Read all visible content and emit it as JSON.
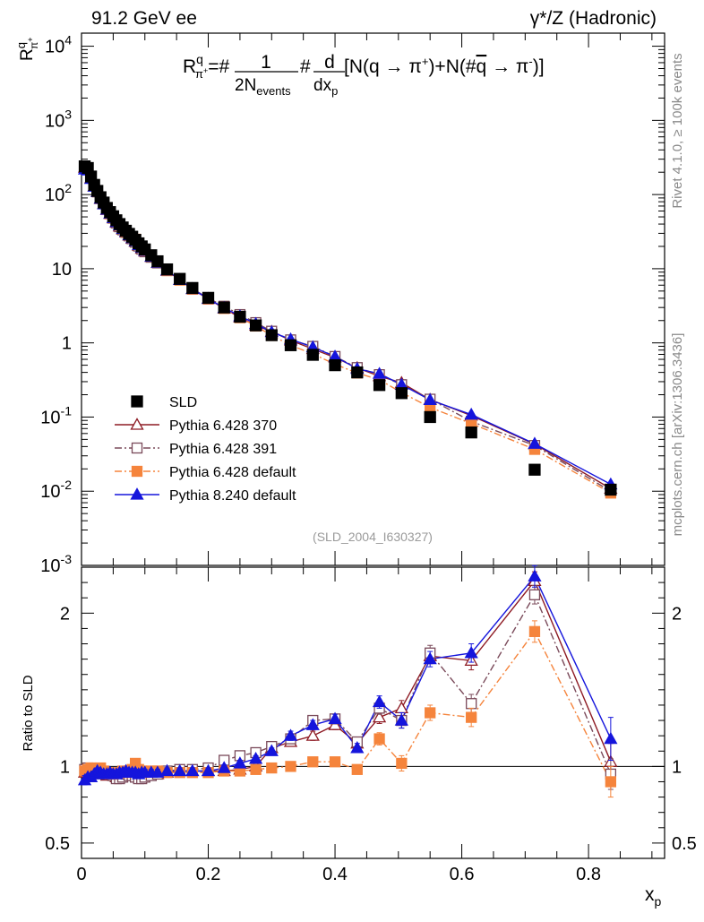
{
  "header": {
    "energy_label": "91.2 GeV ee",
    "process_label": "γ*/Z (Hadronic)",
    "rivet_label": "Rivet 4.1.0, ≥ 100k events",
    "site_label": "mcplots.cern.ch [arXiv:1306.3436]"
  },
  "chart_data": {
    "type": "scatter",
    "title": "R^q_{π+} = 1/(2N_events) d/dx_p [N(q→π+) + N(q̄→π−)]",
    "ylabel": "R^q_{π+}",
    "xlabel": "x_p",
    "ratio_ylabel": "Ratio to SLD",
    "analysis_tag": "(SLD_2004_I630327)",
    "xlim": [
      0,
      0.92
    ],
    "ylim_log": [
      0.001,
      15000
    ],
    "ratio_ylim": [
      0.4,
      2.3
    ],
    "x_ticks": [
      "0",
      "0.2",
      "0.4",
      "0.6",
      "0.8"
    ],
    "y_ticks": [
      "10^4",
      "10^3",
      "10^2",
      "10",
      "1",
      "10^-1",
      "10^-2",
      "10^-3"
    ],
    "ratio_ticks": [
      "2",
      "1",
      "0.5"
    ],
    "x": [
      0.005,
      0.01,
      0.015,
      0.02,
      0.025,
      0.03,
      0.035,
      0.04,
      0.045,
      0.05,
      0.055,
      0.06,
      0.065,
      0.07,
      0.075,
      0.08,
      0.085,
      0.09,
      0.095,
      0.1,
      0.11,
      0.12,
      0.135,
      0.155,
      0.175,
      0.2,
      0.225,
      0.25,
      0.275,
      0.3,
      0.33,
      0.365,
      0.4,
      0.435,
      0.47,
      0.505,
      0.55,
      0.615,
      0.715,
      0.835
    ],
    "reference": {
      "name": "SLD",
      "values": [
        240,
        228,
        175,
        135,
        112,
        92,
        78,
        66,
        58,
        51,
        45,
        40,
        36,
        32.5,
        29.5,
        27,
        24.5,
        22,
        20,
        18.2,
        15.2,
        12.6,
        9.8,
        7.3,
        5.5,
        4.05,
        3.0,
        2.25,
        1.72,
        1.27,
        0.93,
        0.69,
        0.5,
        0.4,
        0.27,
        0.21,
        0.1,
        0.062,
        0.0195,
        0.0105
      ],
      "errors": [
        15,
        12,
        8,
        6,
        5,
        4,
        3,
        2.5,
        2,
        2,
        1.5,
        1.5,
        1.2,
        1,
        1,
        0.9,
        0.8,
        0.7,
        0.7,
        0.6,
        0.5,
        0.4,
        0.3,
        0.25,
        0.2,
        0.15,
        0.1,
        0.08,
        0.06,
        0.05,
        0.04,
        0.03,
        0.02,
        0.02,
        0.015,
        0.012,
        0.008,
        0.005,
        0.002,
        0.0015
      ]
    },
    "series": [
      {
        "name": "Pythia 6.428 370",
        "color": "#8e1b24",
        "marker": "open-triangle",
        "linestyle": "solid",
        "ratio": [
          0.96,
          0.97,
          0.95,
          0.96,
          0.97,
          0.95,
          0.95,
          0.94,
          0.95,
          0.94,
          0.93,
          0.93,
          0.94,
          0.95,
          0.95,
          0.94,
          0.94,
          0.93,
          0.93,
          0.94,
          0.95,
          0.95,
          0.96,
          0.97,
          0.97,
          0.97,
          0.97,
          0.98,
          1.0,
          1.12,
          1.16,
          1.2,
          1.27,
          1.15,
          1.32,
          1.38,
          1.72,
          1.69,
          2.21,
          1.03
        ],
        "ratio_err": [
          0.03,
          0.02,
          0.02,
          0.02,
          0.02,
          0.02,
          0.02,
          0.02,
          0.02,
          0.02,
          0.02,
          0.02,
          0.02,
          0.02,
          0.02,
          0.02,
          0.02,
          0.02,
          0.02,
          0.02,
          0.02,
          0.02,
          0.02,
          0.02,
          0.02,
          0.02,
          0.02,
          0.02,
          0.02,
          0.02,
          0.02,
          0.03,
          0.03,
          0.03,
          0.04,
          0.05,
          0.05,
          0.06,
          0.06,
          0.12
        ]
      },
      {
        "name": "Pythia 6.428 391",
        "color": "#7a4a5a",
        "marker": "open-square",
        "linestyle": "dashdot",
        "ratio": [
          0.98,
          0.99,
          0.97,
          0.97,
          0.97,
          0.96,
          0.96,
          0.95,
          0.95,
          0.94,
          0.92,
          0.92,
          0.93,
          0.95,
          0.94,
          0.94,
          0.93,
          0.92,
          0.92,
          0.93,
          0.94,
          0.95,
          0.97,
          0.98,
          0.98,
          0.99,
          1.04,
          1.07,
          1.09,
          1.13,
          1.18,
          1.3,
          1.31,
          1.16,
          1.38,
          1.3,
          1.74,
          1.41,
          2.12,
          0.95
        ],
        "ratio_err": [
          0.03,
          0.02,
          0.02,
          0.02,
          0.02,
          0.02,
          0.02,
          0.02,
          0.02,
          0.02,
          0.02,
          0.02,
          0.02,
          0.02,
          0.02,
          0.02,
          0.02,
          0.02,
          0.02,
          0.02,
          0.02,
          0.02,
          0.02,
          0.02,
          0.02,
          0.02,
          0.02,
          0.02,
          0.02,
          0.02,
          0.03,
          0.03,
          0.03,
          0.03,
          0.04,
          0.05,
          0.05,
          0.06,
          0.06,
          0.1
        ]
      },
      {
        "name": "Pythia 6.428 default",
        "color": "#f5843c",
        "marker": "filled-square",
        "linestyle": "dashdot",
        "ratio": [
          0.97,
          0.98,
          0.99,
          0.98,
          0.98,
          0.99,
          0.97,
          0.96,
          0.95,
          0.95,
          0.96,
          0.96,
          0.97,
          0.96,
          0.97,
          0.98,
          1.02,
          0.98,
          0.97,
          0.96,
          0.97,
          0.97,
          0.96,
          0.96,
          0.96,
          0.96,
          0.97,
          0.97,
          0.98,
          0.99,
          1.0,
          1.03,
          1.03,
          0.98,
          1.18,
          1.02,
          1.35,
          1.32,
          1.88,
          0.9
        ],
        "ratio_err": [
          0.03,
          0.02,
          0.02,
          0.02,
          0.02,
          0.02,
          0.02,
          0.02,
          0.02,
          0.02,
          0.02,
          0.02,
          0.02,
          0.02,
          0.02,
          0.02,
          0.02,
          0.02,
          0.02,
          0.02,
          0.02,
          0.02,
          0.02,
          0.02,
          0.02,
          0.02,
          0.02,
          0.02,
          0.02,
          0.02,
          0.02,
          0.03,
          0.03,
          0.03,
          0.04,
          0.05,
          0.05,
          0.06,
          0.07,
          0.1
        ]
      },
      {
        "name": "Pythia 8.240 default",
        "color": "#1515dc",
        "marker": "filled-triangle",
        "linestyle": "solid",
        "ratio": [
          0.91,
          0.93,
          0.93,
          0.95,
          0.97,
          0.96,
          0.95,
          0.95,
          0.96,
          0.95,
          0.95,
          0.96,
          0.96,
          0.97,
          0.96,
          0.96,
          0.96,
          0.95,
          0.96,
          0.96,
          0.96,
          0.96,
          0.97,
          0.97,
          0.97,
          0.97,
          0.99,
          1.02,
          1.05,
          1.1,
          1.2,
          1.27,
          1.31,
          1.12,
          1.42,
          1.3,
          1.7,
          1.74,
          2.24,
          1.18
        ],
        "ratio_err": [
          0.03,
          0.02,
          0.02,
          0.02,
          0.02,
          0.02,
          0.02,
          0.02,
          0.02,
          0.02,
          0.02,
          0.02,
          0.02,
          0.02,
          0.02,
          0.02,
          0.02,
          0.02,
          0.02,
          0.02,
          0.02,
          0.02,
          0.02,
          0.02,
          0.02,
          0.02,
          0.02,
          0.02,
          0.02,
          0.02,
          0.03,
          0.03,
          0.03,
          0.03,
          0.04,
          0.05,
          0.05,
          0.06,
          0.07,
          0.14
        ]
      }
    ]
  }
}
